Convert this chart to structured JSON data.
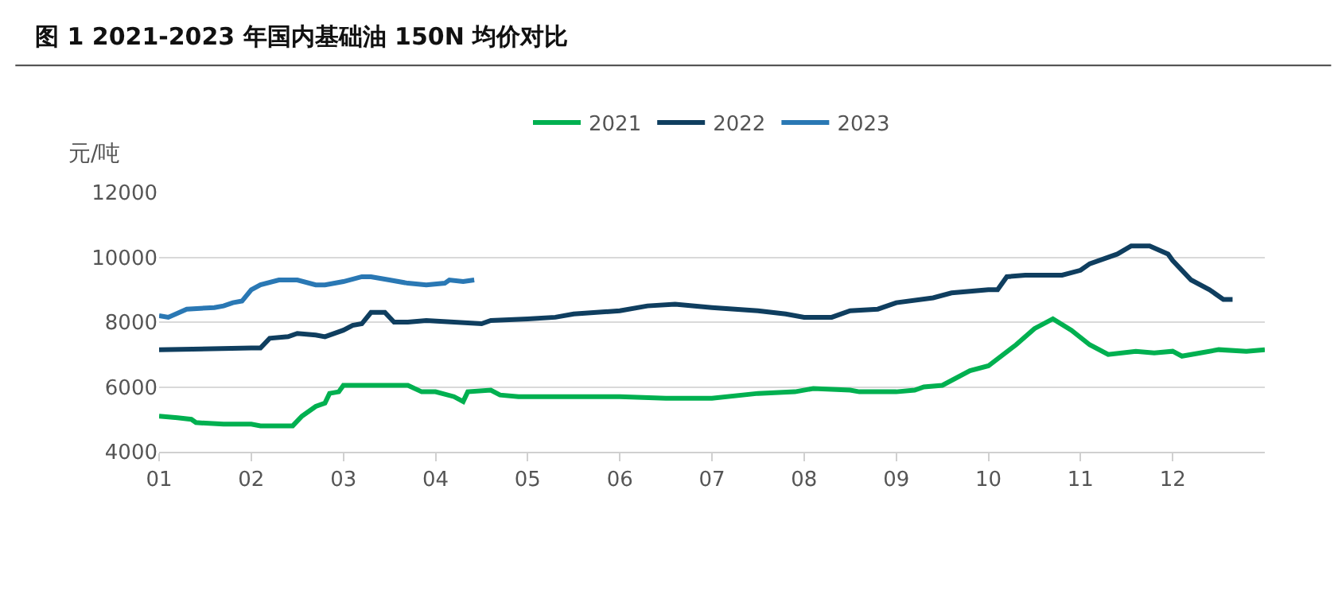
{
  "chart_data": {
    "type": "line",
    "title": "图 1 2021-2023 年国内基础油 150N 均价对比",
    "ylabel": "元/吨",
    "xlim": [
      1,
      13
    ],
    "xticks": [
      {
        "value": 1,
        "label": "01"
      },
      {
        "value": 2,
        "label": "02"
      },
      {
        "value": 3,
        "label": "03"
      },
      {
        "value": 4,
        "label": "04"
      },
      {
        "value": 5,
        "label": "05"
      },
      {
        "value": 6,
        "label": "06"
      },
      {
        "value": 7,
        "label": "07"
      },
      {
        "value": 8,
        "label": "08"
      },
      {
        "value": 9,
        "label": "09"
      },
      {
        "value": 10,
        "label": "10"
      },
      {
        "value": 11,
        "label": "11"
      },
      {
        "value": 12,
        "label": "12"
      }
    ],
    "ylim": [
      4000,
      12000
    ],
    "yticks": [
      4000,
      6000,
      8000,
      10000,
      12000
    ],
    "grid": "y",
    "legend": "top",
    "marker": "none",
    "line_style": "solid",
    "series": [
      {
        "name": "2021",
        "color": "#00b050",
        "x": [
          1.0,
          1.2,
          1.35,
          1.4,
          1.7,
          2.0,
          2.1,
          2.45,
          2.55,
          2.7,
          2.8,
          2.85,
          2.95,
          3.0,
          3.5,
          3.7,
          3.85,
          4.0,
          4.2,
          4.3,
          4.35,
          4.6,
          4.7,
          4.9,
          5.5,
          6.0,
          6.5,
          7.0,
          7.5,
          7.9,
          8.1,
          8.5,
          8.6,
          9.0,
          9.2,
          9.3,
          9.5,
          9.8,
          10.0,
          10.3,
          10.5,
          10.7,
          10.9,
          11.1,
          11.3,
          11.6,
          11.8,
          12.0,
          12.1,
          12.3,
          12.5,
          12.8,
          13.0
        ],
        "values": [
          5100,
          5050,
          5000,
          4900,
          4850,
          4850,
          4800,
          4800,
          5100,
          5400,
          5500,
          5800,
          5850,
          6050,
          6050,
          6050,
          5850,
          5850,
          5700,
          5550,
          5850,
          5900,
          5750,
          5700,
          5700,
          5700,
          5650,
          5650,
          5800,
          5850,
          5950,
          5900,
          5850,
          5850,
          5900,
          6000,
          6050,
          6500,
          6650,
          7300,
          7800,
          8100,
          7750,
          7300,
          7000,
          7100,
          7050,
          7100,
          6950,
          7050,
          7150,
          7100,
          7150
        ]
      },
      {
        "name": "2022",
        "color": "#0f3e5f",
        "x": [
          1.0,
          2.0,
          2.1,
          2.2,
          2.4,
          2.5,
          2.7,
          2.8,
          3.0,
          3.1,
          3.2,
          3.3,
          3.45,
          3.55,
          3.7,
          3.9,
          4.5,
          4.6,
          5.0,
          5.3,
          5.5,
          6.0,
          6.3,
          6.6,
          7.0,
          7.5,
          7.8,
          8.0,
          8.3,
          8.5,
          8.8,
          9.0,
          9.4,
          9.6,
          10.0,
          10.1,
          10.2,
          10.4,
          10.8,
          11.0,
          11.1,
          11.4,
          11.55,
          11.75,
          11.95,
          12.0,
          12.2,
          12.4,
          12.55,
          12.65
        ],
        "values": [
          7150,
          7200,
          7200,
          7500,
          7550,
          7650,
          7600,
          7550,
          7750,
          7900,
          7950,
          8300,
          8300,
          8000,
          8000,
          8050,
          7950,
          8050,
          8100,
          8150,
          8250,
          8350,
          8500,
          8550,
          8450,
          8350,
          8250,
          8150,
          8150,
          8350,
          8400,
          8600,
          8750,
          8900,
          9000,
          9000,
          9400,
          9450,
          9450,
          9600,
          9800,
          10100,
          10350,
          10350,
          10100,
          9900,
          9300,
          9000,
          8700,
          8700
        ]
      },
      {
        "name": "2023",
        "color": "#2a78b4",
        "x": [
          1.0,
          1.1,
          1.3,
          1.6,
          1.7,
          1.8,
          1.9,
          2.0,
          2.1,
          2.3,
          2.5,
          2.7,
          2.8,
          3.0,
          3.2,
          3.3,
          3.5,
          3.7,
          3.9,
          4.1,
          4.15,
          4.3,
          4.42
        ],
        "values": [
          8200,
          8150,
          8400,
          8450,
          8500,
          8600,
          8650,
          9000,
          9150,
          9300,
          9300,
          9150,
          9150,
          9250,
          9400,
          9400,
          9300,
          9200,
          9150,
          9200,
          9300,
          9250,
          9300
        ]
      }
    ]
  }
}
